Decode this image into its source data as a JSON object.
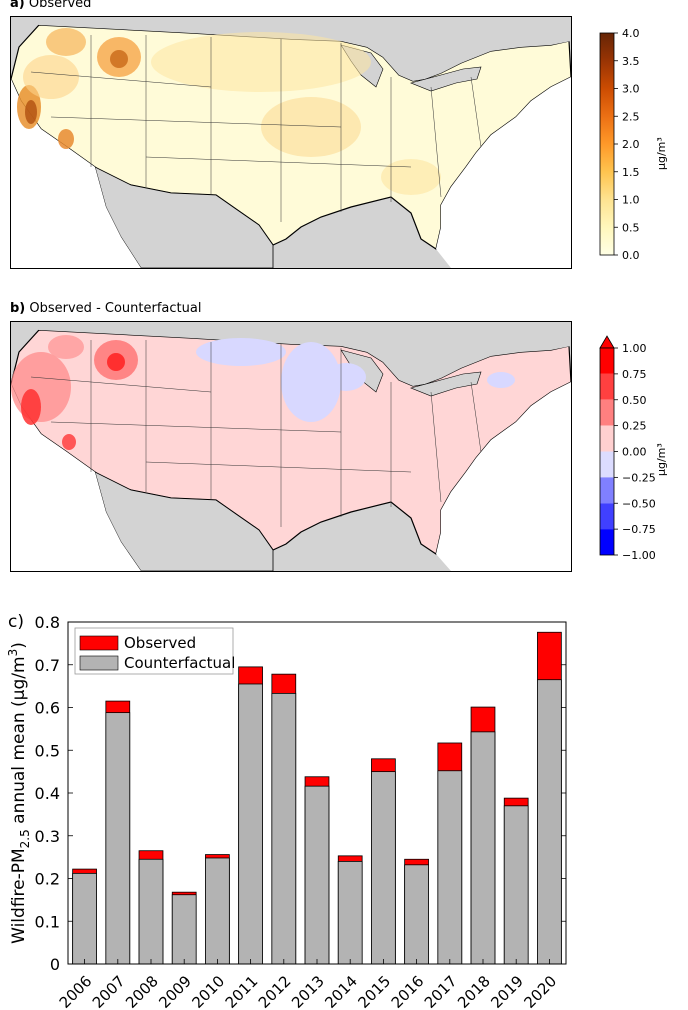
{
  "panel_a": {
    "letter": "a)",
    "title": "Observed",
    "colorbar": {
      "unit": "µg/m³",
      "ticks": [
        "0.0",
        "0.5",
        "1.0",
        "1.5",
        "2.0",
        "2.5",
        "3.0",
        "3.5",
        "4.0"
      ],
      "range": [
        0,
        4.0
      ],
      "colors": [
        "#ffffe5",
        "#fff7bc",
        "#fee391",
        "#fec44f",
        "#fe9929",
        "#ec7014",
        "#cc4c02",
        "#993404",
        "#662506"
      ]
    }
  },
  "panel_b": {
    "letter": "b)",
    "title": "Observed - Counterfactual",
    "colorbar": {
      "unit": "µg/m³",
      "ticks": [
        "1.00",
        "0.75",
        "0.50",
        "0.25",
        "0.00",
        "−0.25",
        "−0.50",
        "−0.75",
        "−1.00"
      ],
      "range": [
        -1.0,
        1.0
      ],
      "colors": [
        "#ff0000",
        "#ff4040",
        "#ff8080",
        "#ffd0d0",
        "#dcdcff",
        "#8080ff",
        "#4040ff",
        "#0000ff"
      ]
    }
  },
  "panel_c": {
    "letter": "c)",
    "chart_data": {
      "type": "bar",
      "stacked_overlay": true,
      "categories": [
        "2006",
        "2007",
        "2008",
        "2009",
        "2010",
        "2011",
        "2012",
        "2013",
        "2014",
        "2015",
        "2016",
        "2017",
        "2018",
        "2019",
        "2020"
      ],
      "series": [
        {
          "name": "Observed",
          "color": "#ff0000",
          "values": [
            0.222,
            0.615,
            0.265,
            0.168,
            0.256,
            0.695,
            0.678,
            0.438,
            0.253,
            0.48,
            0.245,
            0.517,
            0.601,
            0.388,
            0.776
          ]
        },
        {
          "name": "Counterfactual",
          "color": "#b3b3b3",
          "values": [
            0.212,
            0.588,
            0.245,
            0.162,
            0.248,
            0.655,
            0.633,
            0.416,
            0.24,
            0.45,
            0.232,
            0.452,
            0.543,
            0.37,
            0.665
          ]
        }
      ],
      "ylabel": "Wildfire-PM",
      "ylabel_sub": "2.5",
      "ylabel_rest": " annual mean (µg/m",
      "ylabel_sup": "3",
      "ylabel_end": ")",
      "ylim": [
        0,
        0.8
      ],
      "yticks": [
        "0",
        "0.1",
        "0.2",
        "0.3",
        "0.4",
        "0.5",
        "0.6",
        "0.7",
        "0.8"
      ],
      "legend_position": "top-left",
      "grid": false
    }
  }
}
